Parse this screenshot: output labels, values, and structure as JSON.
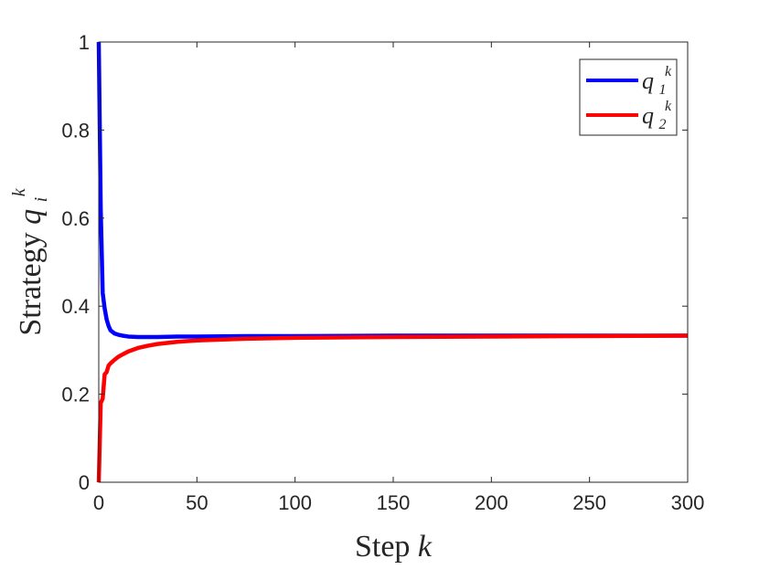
{
  "chart_data": {
    "type": "line",
    "xlabel": "Step",
    "xlabel_var": "k",
    "ylabel": "Strategy",
    "ylabel_var": "q",
    "ylabel_sub": "i",
    "ylabel_sup": "k",
    "xlim": [
      0,
      300
    ],
    "ylim": [
      0,
      1
    ],
    "xticks": [
      "0",
      "50",
      "100",
      "150",
      "200",
      "250",
      "300"
    ],
    "yticks": [
      "0",
      "0.2",
      "0.4",
      "0.6",
      "0.8",
      "1"
    ],
    "grid": false,
    "legend_position": "top-right",
    "series": [
      {
        "name": "q",
        "name_sub": "1",
        "name_sup": "k",
        "color": "#0000ff",
        "x": [
          0,
          1,
          2,
          3,
          4,
          5,
          6,
          8,
          10,
          12,
          15,
          20,
          25,
          30,
          40,
          50,
          75,
          100,
          150,
          200,
          250,
          300
        ],
        "y": [
          1.0,
          0.62,
          0.43,
          0.395,
          0.37,
          0.355,
          0.345,
          0.338,
          0.335,
          0.333,
          0.331,
          0.33,
          0.33,
          0.33,
          0.331,
          0.331,
          0.332,
          0.332,
          0.333,
          0.333,
          0.333,
          0.333
        ]
      },
      {
        "name": "q",
        "name_sub": "2",
        "name_sup": "k",
        "color": "#ff0000",
        "x": [
          0,
          1,
          2,
          3,
          4,
          5,
          6,
          8,
          10,
          12,
          15,
          20,
          25,
          30,
          40,
          50,
          75,
          100,
          150,
          200,
          250,
          300
        ],
        "y": [
          0.0,
          0.18,
          0.19,
          0.245,
          0.25,
          0.265,
          0.27,
          0.278,
          0.285,
          0.29,
          0.297,
          0.305,
          0.31,
          0.314,
          0.319,
          0.322,
          0.326,
          0.328,
          0.33,
          0.331,
          0.332,
          0.333
        ]
      }
    ]
  }
}
